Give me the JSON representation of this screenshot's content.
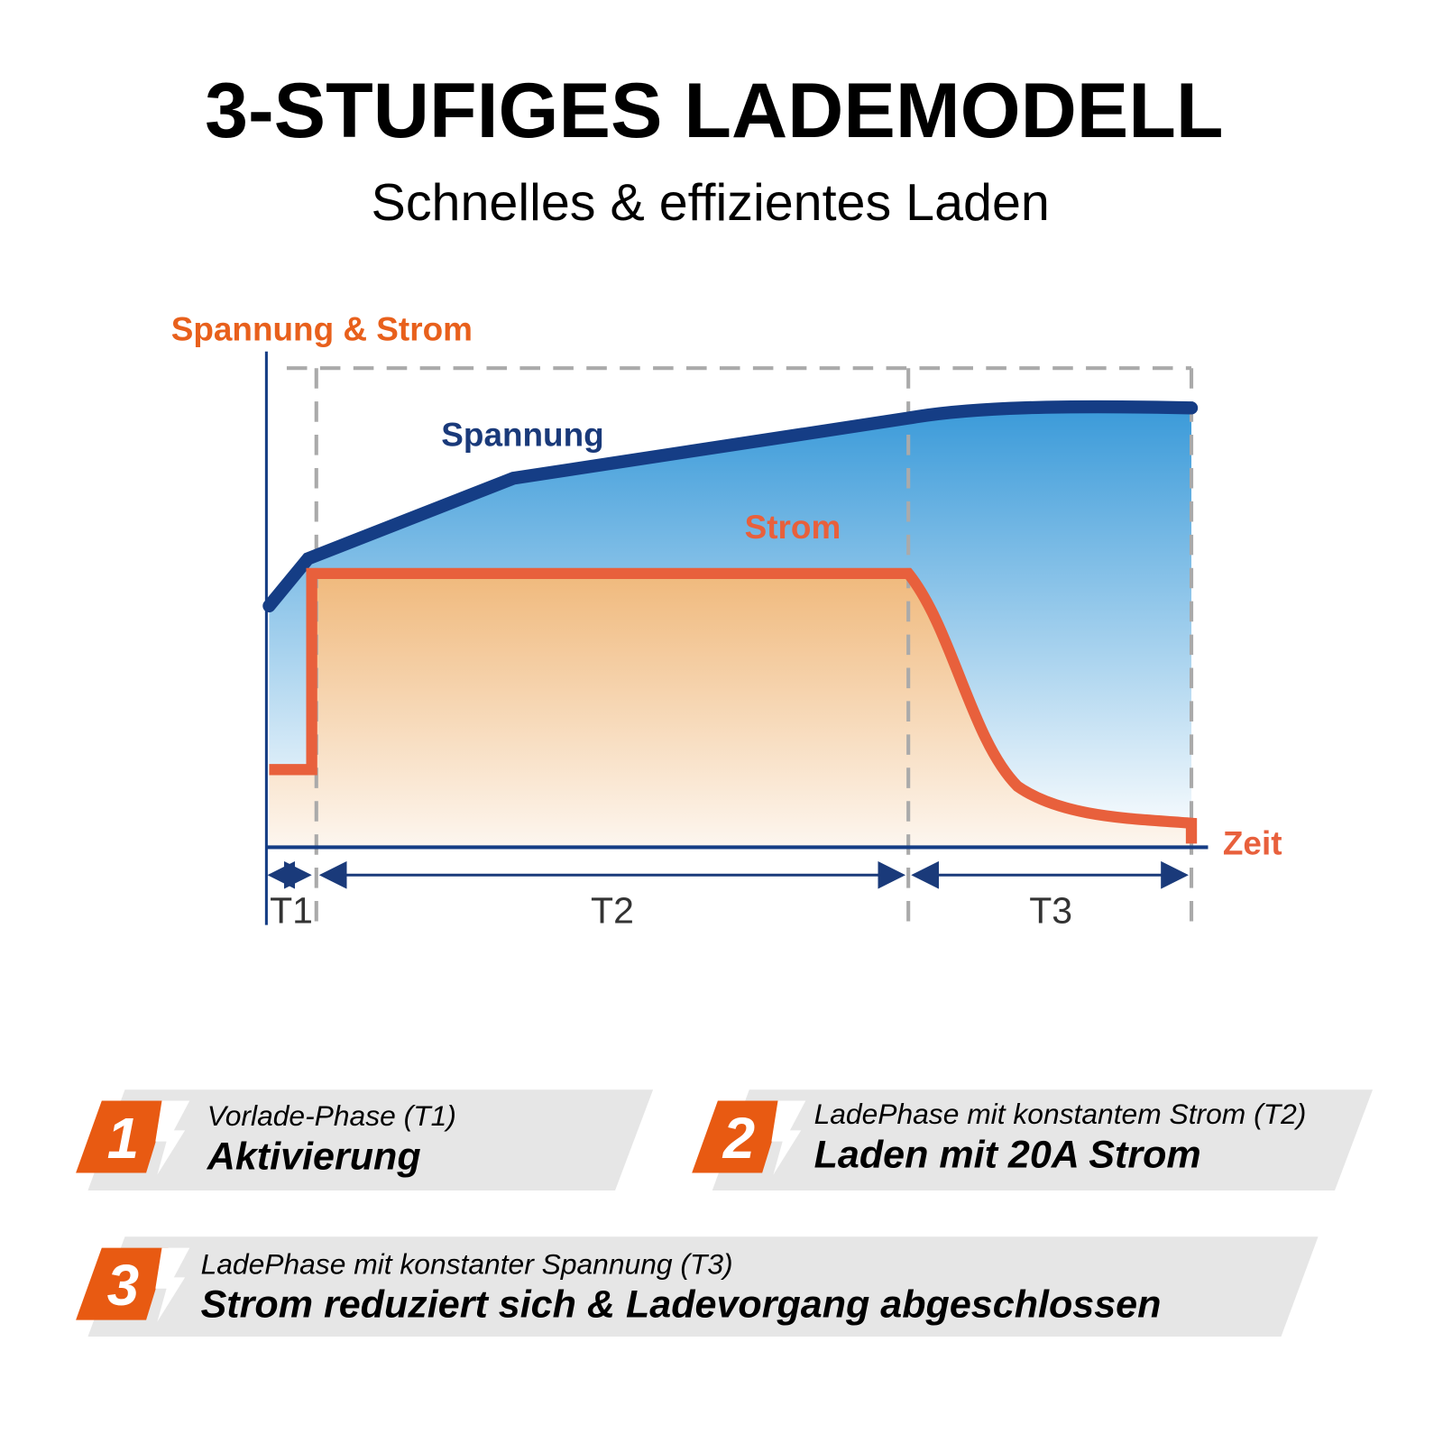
{
  "header": {
    "title": "3-STUFIGES LADEMODELL",
    "subtitle": "Schnelles & effizientes Laden"
  },
  "diagram": {
    "y_axis_label": "Spannung & Strom",
    "x_axis_label": "Zeit",
    "curves": [
      "Spannung",
      "Strom"
    ],
    "phases": [
      "T1",
      "T2",
      "T3"
    ]
  },
  "steps": [
    {
      "number": "1",
      "phase": "Vorlade-Phase (T1)",
      "label": "Aktivierung"
    },
    {
      "number": "2",
      "phase": "LadePhase mit konstantem Strom (T2)",
      "label": "Laden mit 20A Strom"
    },
    {
      "number": "3",
      "phase": "LadePhase mit konstanter Spannung (T3)",
      "label": "Strom reduziert sich & Ladevorgang abgeschlossen"
    }
  ]
}
